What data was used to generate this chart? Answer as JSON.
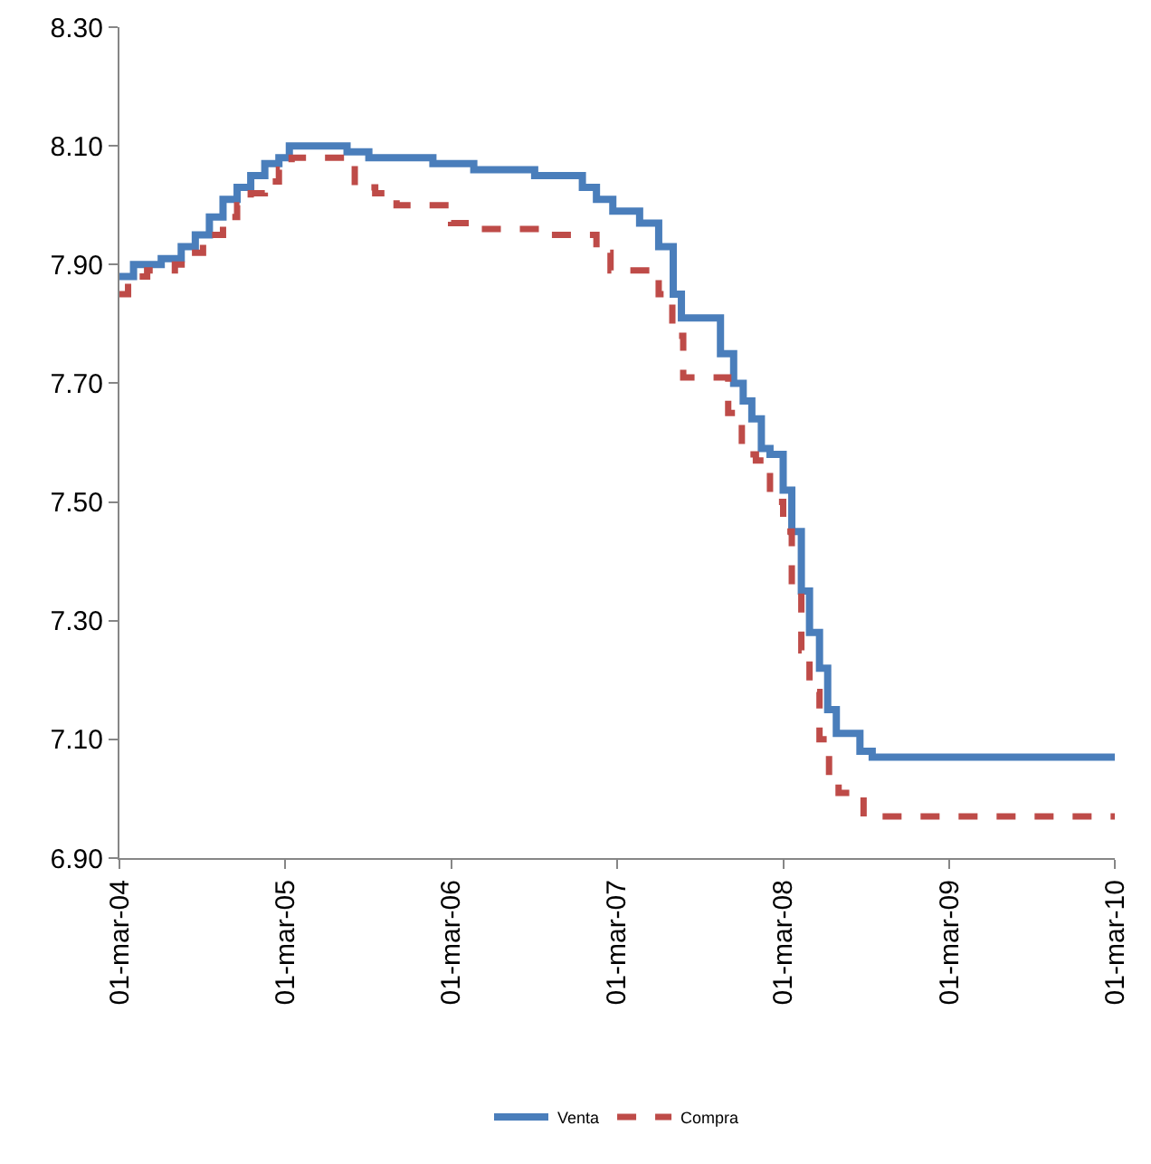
{
  "chart_data": {
    "type": "step",
    "xlim": [
      "2004-03-01",
      "2010-03-01"
    ],
    "ylim": [
      6.9,
      8.3
    ],
    "xticks": [
      {
        "value": "2004-03-01",
        "label": "01-mar-04"
      },
      {
        "value": "2005-03-01",
        "label": "01-mar-05"
      },
      {
        "value": "2006-03-01",
        "label": "01-mar-06"
      },
      {
        "value": "2007-03-01",
        "label": "01-mar-07"
      },
      {
        "value": "2008-03-01",
        "label": "01-mar-08"
      },
      {
        "value": "2009-03-01",
        "label": "01-mar-09"
      },
      {
        "value": "2010-03-01",
        "label": "01-mar-10"
      }
    ],
    "yticks": [
      {
        "value": 6.9,
        "label": "6.90"
      },
      {
        "value": 7.1,
        "label": "7.10"
      },
      {
        "value": 7.3,
        "label": "7.30"
      },
      {
        "value": 7.5,
        "label": "7.50"
      },
      {
        "value": 7.7,
        "label": "7.70"
      },
      {
        "value": 7.9,
        "label": "7.90"
      },
      {
        "value": 8.1,
        "label": "8.10"
      },
      {
        "value": 8.3,
        "label": "8.30"
      }
    ],
    "grid": false,
    "legend": "bottom",
    "marker": "none",
    "series": [
      {
        "name": "Venta",
        "color": "#4a7ebb",
        "line_style": "solid",
        "x": [
          "2004-03-01",
          "2004-04-01",
          "2004-06-01",
          "2004-07-15",
          "2004-08-15",
          "2004-09-15",
          "2004-10-15",
          "2004-11-15",
          "2004-12-15",
          "2005-01-15",
          "2005-02-15",
          "2005-03-10",
          "2005-07-15",
          "2005-09-01",
          "2006-01-20",
          "2006-04-20",
          "2006-09-01",
          "2006-12-15",
          "2007-01-15",
          "2007-02-20",
          "2007-04-20",
          "2007-06-01",
          "2007-07-03",
          "2007-07-21",
          "2007-08-13",
          "2007-10-15",
          "2007-11-13",
          "2007-12-04",
          "2007-12-23",
          "2008-01-13",
          "2008-02-01",
          "2008-03-01",
          "2008-03-20",
          "2008-04-10",
          "2008-04-28",
          "2008-05-20",
          "2008-06-07",
          "2008-06-26",
          "2008-07-15",
          "2008-08-17",
          "2008-09-13",
          "2010-03-01"
        ],
        "values": [
          7.88,
          7.9,
          7.91,
          7.93,
          7.95,
          7.98,
          8.01,
          8.03,
          8.05,
          8.07,
          8.08,
          8.1,
          8.09,
          8.08,
          8.07,
          8.06,
          8.05,
          8.03,
          8.01,
          7.99,
          7.97,
          7.93,
          7.85,
          7.81,
          7.81,
          7.75,
          7.7,
          7.67,
          7.64,
          7.59,
          7.58,
          7.52,
          7.45,
          7.35,
          7.28,
          7.22,
          7.15,
          7.11,
          7.11,
          7.08,
          7.07,
          7.07
        ]
      },
      {
        "name": "Compra",
        "color": "#be4b48",
        "line_style": "dashed",
        "x": [
          "2004-03-01",
          "2004-03-20",
          "2004-05-01",
          "2004-07-01",
          "2004-08-01",
          "2004-09-01",
          "2004-10-15",
          "2004-11-15",
          "2004-12-15",
          "2005-01-15",
          "2005-02-15",
          "2005-03-15",
          "2005-07-15",
          "2005-08-01",
          "2005-09-15",
          "2005-11-01",
          "2006-03-01",
          "2006-05-01",
          "2006-09-15",
          "2006-12-15",
          "2007-01-15",
          "2007-02-15",
          "2007-05-20",
          "2007-06-01",
          "2007-07-01",
          "2007-07-25",
          "2007-10-01",
          "2007-11-01",
          "2007-12-01",
          "2008-01-01",
          "2008-02-01",
          "2008-03-01",
          "2008-03-20",
          "2008-04-10",
          "2008-04-28",
          "2008-05-20",
          "2008-06-10",
          "2008-07-01",
          "2008-08-10",
          "2008-08-25",
          "2010-03-01"
        ],
        "values": [
          7.85,
          7.88,
          7.89,
          7.9,
          7.92,
          7.95,
          7.98,
          8.0,
          8.02,
          8.04,
          8.06,
          8.08,
          8.08,
          8.03,
          8.02,
          8.0,
          7.97,
          7.96,
          7.95,
          7.95,
          7.92,
          7.89,
          7.89,
          7.85,
          7.78,
          7.71,
          7.71,
          7.65,
          7.58,
          7.57,
          7.5,
          7.45,
          7.35,
          7.25,
          7.18,
          7.1,
          7.03,
          7.01,
          7.01,
          6.97,
          6.97
        ]
      }
    ]
  }
}
